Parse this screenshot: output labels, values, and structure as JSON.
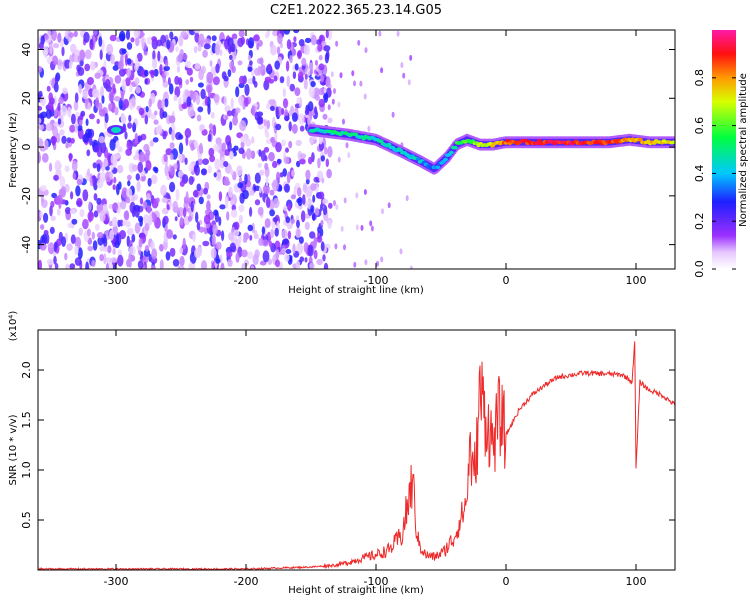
{
  "title": "C2E1.2022.365.23.14.G05",
  "colors": {
    "axis": "#000000",
    "snr_line": "#ee2a2a",
    "background": "#ffffff"
  },
  "chart_data": [
    {
      "type": "heatmap",
      "xlabel": "Height of straight line (km)",
      "ylabel": "Frequency (Hz)",
      "xlim": [
        -360,
        130
      ],
      "ylim": [
        -50,
        48
      ],
      "xticks": [
        -300,
        -200,
        -100,
        0,
        100
      ],
      "yticks": [
        -40,
        -20,
        0,
        20,
        40
      ],
      "colorbar": {
        "label": "Normalized spectral amplitude",
        "range": [
          0,
          1
        ],
        "ticks": [
          0.0,
          0.2,
          0.4,
          0.6,
          0.8
        ],
        "colormap": "rainbow (white-violet-blue-cyan-green-yellow-red-magenta)"
      },
      "features": {
        "noise_region_x": [
          -360,
          -150
        ],
        "signal_track": {
          "x": [
            -150,
            -120,
            -100,
            -80,
            -65,
            -55,
            -45,
            -38,
            -30,
            -20,
            -10,
            0,
            20,
            50,
            80,
            95,
            110,
            130
          ],
          "y": [
            7,
            5,
            3,
            -2,
            -6,
            -9,
            -4,
            1,
            3,
            1,
            1,
            2,
            2,
            2,
            2,
            3,
            2,
            2
          ],
          "amplitude": [
            0.45,
            0.5,
            0.45,
            0.45,
            0.4,
            0.35,
            0.4,
            0.55,
            0.6,
            0.65,
            0.75,
            0.85,
            0.9,
            0.9,
            0.85,
            0.8,
            0.75,
            0.7
          ]
        },
        "isolated_blob": {
          "x": -300,
          "y": 7,
          "amplitude": 0.45
        }
      }
    },
    {
      "type": "line",
      "xlabel": "Height of straight line (km)",
      "ylabel": "SNR (10 * v/v)",
      "scale_note": "(x10⁴)",
      "xlim": [
        -360,
        130
      ],
      "ylim": [
        0,
        2.4
      ],
      "xticks": [
        -300,
        -200,
        -100,
        0,
        100
      ],
      "yticks": [
        0.5,
        1.0,
        1.5,
        2.0
      ],
      "series": [
        {
          "x": [
            -360,
            -300,
            -200,
            -150,
            -130,
            -120,
            -110,
            -100,
            -90,
            -80,
            -74,
            -72,
            -68,
            -62,
            -55,
            -48,
            -40,
            -35,
            -30,
            -28,
            -25,
            -22,
            -20,
            -15,
            -10,
            -5,
            0,
            10,
            20,
            30,
            40,
            60,
            80,
            90,
            97,
            99,
            100,
            103,
            110,
            120,
            130
          ],
          "y": [
            0.01,
            0.01,
            0.01,
            0.03,
            0.05,
            0.08,
            0.12,
            0.15,
            0.2,
            0.35,
            0.75,
            0.9,
            0.3,
            0.15,
            0.13,
            0.18,
            0.32,
            0.5,
            0.7,
            1.25,
            0.9,
            1.3,
            1.8,
            1.5,
            1.25,
            1.55,
            1.35,
            1.6,
            1.75,
            1.85,
            1.93,
            1.97,
            1.96,
            1.95,
            1.88,
            2.3,
            1.0,
            1.88,
            1.8,
            1.75,
            1.65
          ]
        }
      ]
    }
  ]
}
